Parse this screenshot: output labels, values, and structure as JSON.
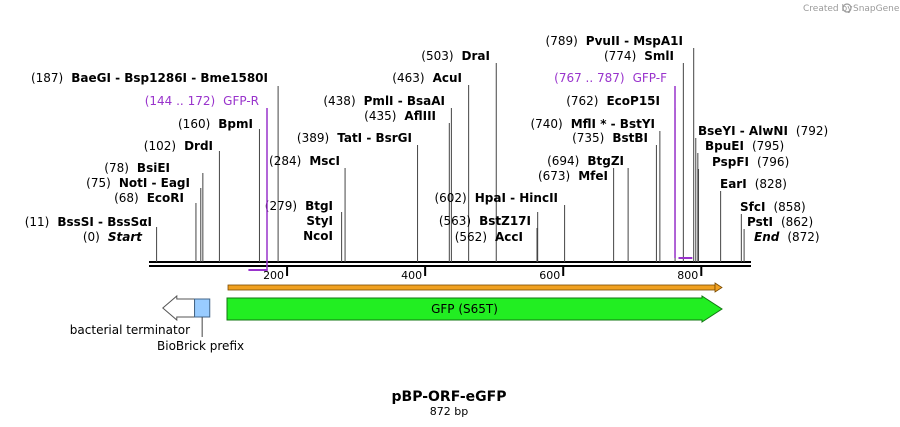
{
  "brand": {
    "created_by": "Created by",
    "product": "SnapGene",
    "logo_icon": "snapgene-logo-icon"
  },
  "map": {
    "name": "pBP-ORF-eGFP",
    "length_label": "872 bp",
    "length": 872,
    "ticks": [
      {
        "value": 200,
        "label": "200"
      },
      {
        "value": 400,
        "label": "400"
      },
      {
        "value": 600,
        "label": "600"
      },
      {
        "value": 800,
        "label": "800"
      }
    ]
  },
  "sites": [
    {
      "pos_label": "(0)",
      "name": "Start",
      "loc": 0,
      "style": "italic"
    },
    {
      "pos_label": "(11)",
      "name": "BssSI  -  BssSαI",
      "loc": 11
    },
    {
      "pos_label": "(68)",
      "name": "EcoRI",
      "loc": 68
    },
    {
      "pos_label": "(75)",
      "name": "NotI  -  EagI",
      "loc": 75
    },
    {
      "pos_label": "(78)",
      "name": "BsiEI",
      "loc": 78
    },
    {
      "pos_label": "(102)",
      "name": "DrdI",
      "loc": 102
    },
    {
      "pos_label": "(160)",
      "name": "BpmI",
      "loc": 160
    },
    {
      "pos_label": "(187)",
      "name": "BaeGI  -  Bsp1286I  -  Bme1580I",
      "loc": 187
    },
    {
      "pos_label": "(279)",
      "name": "BtgI",
      "loc": 279,
      "stack": [
        "StyI",
        "NcoI"
      ]
    },
    {
      "pos_label": "(284)",
      "name": "MscI",
      "loc": 284
    },
    {
      "pos_label": "(389)",
      "name": "TatI  -  BsrGI",
      "loc": 389
    },
    {
      "pos_label": "(435)",
      "name": "AflIII",
      "loc": 435
    },
    {
      "pos_label": "(438)",
      "name": "PmlI  -  BsaAI",
      "loc": 438
    },
    {
      "pos_label": "(463)",
      "name": "AcuI",
      "loc": 463
    },
    {
      "pos_label": "(503)",
      "name": "DraI",
      "loc": 503
    },
    {
      "pos_label": "(562)",
      "name": "AccI",
      "loc": 562
    },
    {
      "pos_label": "(563)",
      "name": "BstZ17I",
      "loc": 563
    },
    {
      "pos_label": "(602)",
      "name": "HpaI  -  HincII",
      "loc": 602
    },
    {
      "pos_label": "(673)",
      "name": "MfeI",
      "loc": 673
    },
    {
      "pos_label": "(694)",
      "name": "BtgZI",
      "loc": 694
    },
    {
      "pos_label": "(735)",
      "name": "BstBI",
      "loc": 735
    },
    {
      "pos_label": "(740)",
      "name": "MflI *  -  BstYI",
      "loc": 740
    },
    {
      "pos_label": "(762)",
      "name": "EcoP15I",
      "loc": 762
    },
    {
      "pos_label": "(774)",
      "name": "SmlI",
      "loc": 774
    },
    {
      "pos_label": "(789)",
      "name": "PvuII  -  MspA1I",
      "loc": 789
    },
    {
      "pos_label": "(792)",
      "name": "BseYI  -  AlwNI",
      "loc": 792
    },
    {
      "pos_label": "(795)",
      "name": "BpuEI",
      "loc": 795
    },
    {
      "pos_label": "(796)",
      "name": "PspFI",
      "loc": 796
    },
    {
      "pos_label": "(828)",
      "name": "EarI",
      "loc": 828
    },
    {
      "pos_label": "(858)",
      "name": "SfcI",
      "loc": 858
    },
    {
      "pos_label": "(862)",
      "name": "PstI",
      "loc": 862
    },
    {
      "pos_label": "(872)",
      "name": "End",
      "loc": 872,
      "style": "italic"
    }
  ],
  "primers": [
    {
      "name": "GFP-R",
      "range_label": "(144 .. 172)",
      "start": 144,
      "end": 172,
      "color": "#9933cc"
    },
    {
      "name": "GFP-F",
      "range_label": "(767 .. 787)",
      "start": 767,
      "end": 787,
      "color": "#9933cc"
    }
  ],
  "features": [
    {
      "name": "GFP (S65T)",
      "start": 113,
      "end": 830,
      "color": "#22ee22",
      "direction": "forward"
    },
    {
      "name": "bacterial terminator",
      "start": 20,
      "end": 66,
      "color": "#ffffff",
      "direction": "reverse"
    },
    {
      "name": "BioBrick prefix",
      "start": 66,
      "end": 88,
      "color": "#99ccff"
    }
  ],
  "orf": {
    "start": 113,
    "end": 830,
    "color": "#f0a020"
  }
}
